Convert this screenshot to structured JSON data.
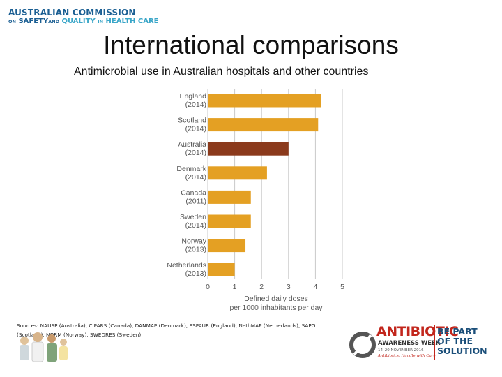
{
  "header": {
    "logo_line1": "AUSTRALIAN COMMISSION",
    "logo_on": "ON",
    "logo_safety": "SAFETY",
    "logo_and": "AND",
    "logo_quality": "QUALITY",
    "logo_in": "IN",
    "logo_health": "HEALTH CARE"
  },
  "title": "International comparisons",
  "subtitle": "Antimicrobial use in Australian hospitals and other countries",
  "chart_data": {
    "type": "bar",
    "orientation": "horizontal",
    "categories": [
      {
        "country": "England",
        "year": "(2014)"
      },
      {
        "country": "Scotland",
        "year": "(2014)"
      },
      {
        "country": "Australia",
        "year": "(2014)"
      },
      {
        "country": "Denmark",
        "year": "(2014)"
      },
      {
        "country": "Canada",
        "year": "(2011)"
      },
      {
        "country": "Sweden",
        "year": "(2014)"
      },
      {
        "country": "Norway",
        "year": "(2013)"
      },
      {
        "country": "Netherlands",
        "year": "(2013)"
      }
    ],
    "values": [
      4.2,
      4.1,
      3.0,
      2.2,
      1.6,
      1.6,
      1.4,
      1.0
    ],
    "highlight_index": 2,
    "colors": {
      "default": "#e4a023",
      "highlight": "#8b3a1c",
      "grid": "#c8c8c8",
      "label": "#555555"
    },
    "xlim": [
      0,
      5
    ],
    "xticks": [
      "0",
      "1",
      "2",
      "3",
      "4",
      "5"
    ],
    "xlabel_line1": "Defined daily doses",
    "xlabel_line2": "per 1000 inhabitants per day",
    "grid": "vertical"
  },
  "sources": "Sources: NAUSP (Australia), CIPARS (Canada), DANMAP (Denmark), ESPAUR (England), NethMAP (Netherlands), SAPG (Scotland), NORM (Norway), SWEDRES (Sweden)",
  "campaign": {
    "word": "ANTIBIOTIC",
    "week": "AWARENESS WEEK",
    "dates": "14–20 NOVEMBER 2016",
    "tagline": "Antibiotics: Handle with Care",
    "slogan_line1": "BE PART",
    "slogan_line2": "OF THE",
    "slogan_line3": "SOLUTION",
    "ring_color": "#555555",
    "accent_color": "#c2261c"
  }
}
